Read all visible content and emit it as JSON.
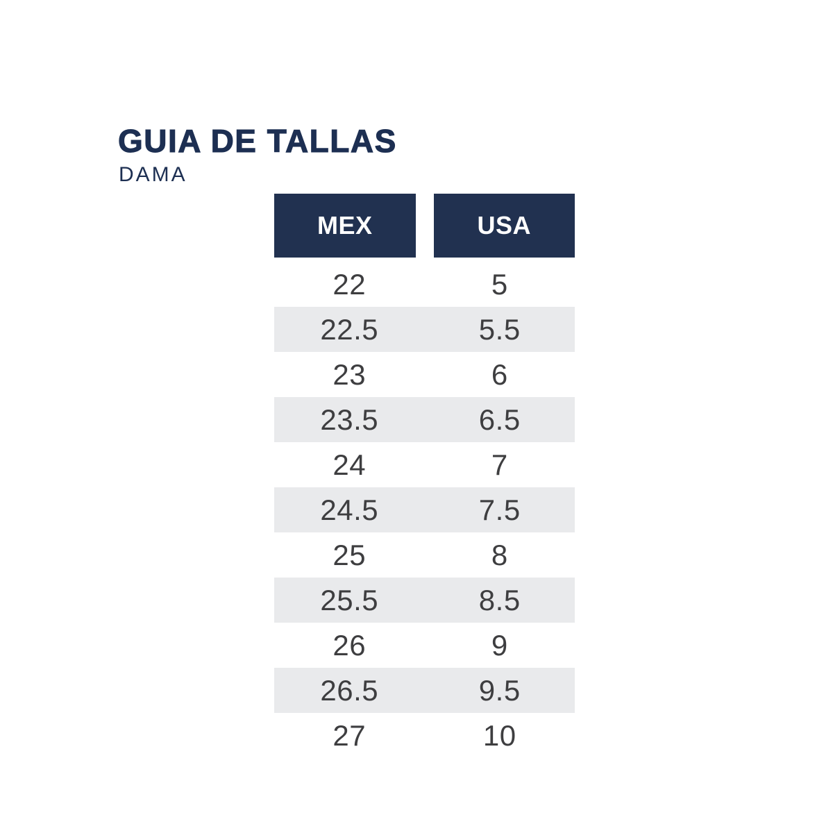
{
  "page": {
    "title": "GUIA DE TALLAS",
    "subtitle": "DAMA"
  },
  "table": {
    "columns": [
      "MEX",
      "USA"
    ],
    "rows": [
      [
        "22",
        "5"
      ],
      [
        "22.5",
        "5.5"
      ],
      [
        "23",
        "6"
      ],
      [
        "23.5",
        "6.5"
      ],
      [
        "24",
        "7"
      ],
      [
        "24.5",
        "7.5"
      ],
      [
        "25",
        "8"
      ],
      [
        "25.5",
        "8.5"
      ],
      [
        "26",
        "9"
      ],
      [
        "26.5",
        "9.5"
      ],
      [
        "27",
        "10"
      ]
    ]
  },
  "colors": {
    "navy": "#1d2f52",
    "header_bg": "#213150",
    "header_text": "#ffffff",
    "stripe": "#e9eaec",
    "cell_text": "#3e3e40",
    "background": "#ffffff"
  }
}
